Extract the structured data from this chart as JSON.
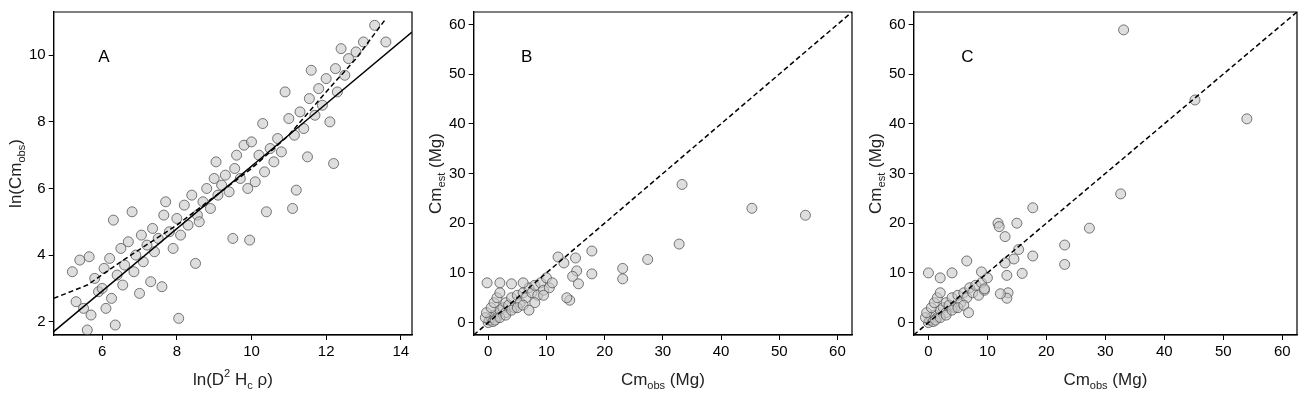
{
  "chart_data": [
    {
      "type": "scatter",
      "xlabel": "ln(D$^{2}$ H$_{c}$ ρ)",
      "ylabel": "ln(Cm$_{obs}$)",
      "annotations": [
        "A"
      ],
      "xlim": [
        4.7,
        14.3
      ],
      "ylim": [
        1.6,
        11.3
      ],
      "xticks": [
        6,
        8,
        10,
        12,
        14
      ],
      "yticks": [
        2,
        4,
        6,
        8,
        10
      ],
      "legend": false,
      "grid": false,
      "series": [
        {
          "type": "scatter",
          "marker": "circle",
          "color": "#c8c8c8",
          "x": [
            5.2,
            5.3,
            5.4,
            5.5,
            5.6,
            5.65,
            5.7,
            5.8,
            5.9,
            6.0,
            6.05,
            6.1,
            6.2,
            6.25,
            6.3,
            6.35,
            6.4,
            6.5,
            6.55,
            6.6,
            6.7,
            6.8,
            6.85,
            6.9,
            7.0,
            7.05,
            7.1,
            7.2,
            7.3,
            7.35,
            7.4,
            7.5,
            7.6,
            7.65,
            7.7,
            7.8,
            7.9,
            8.0,
            8.05,
            8.1,
            8.2,
            8.3,
            8.4,
            8.5,
            8.55,
            8.6,
            8.7,
            8.8,
            8.9,
            9.0,
            9.05,
            9.1,
            9.2,
            9.3,
            9.4,
            9.5,
            9.55,
            9.6,
            9.7,
            9.8,
            9.9,
            9.95,
            10.0,
            10.1,
            10.2,
            10.3,
            10.35,
            10.4,
            10.5,
            10.6,
            10.7,
            10.8,
            10.9,
            11.0,
            11.1,
            11.15,
            11.2,
            11.3,
            11.4,
            11.5,
            11.55,
            11.6,
            11.7,
            11.8,
            11.9,
            12.0,
            12.1,
            12.2,
            12.25,
            12.3,
            12.4,
            12.5,
            12.6,
            12.8,
            13.0,
            13.3,
            13.6
          ],
          "values": [
            3.5,
            2.6,
            3.85,
            2.4,
            1.75,
            3.95,
            2.2,
            3.3,
            2.9,
            3.0,
            3.6,
            2.4,
            3.9,
            2.7,
            5.05,
            1.9,
            3.4,
            4.2,
            3.1,
            3.7,
            4.4,
            5.3,
            3.5,
            4.0,
            2.85,
            4.6,
            3.8,
            4.3,
            3.2,
            4.8,
            4.1,
            4.5,
            3.05,
            5.2,
            5.6,
            4.7,
            4.2,
            5.1,
            2.1,
            4.6,
            5.5,
            4.9,
            5.8,
            3.75,
            5.2,
            5.0,
            5.6,
            6.0,
            5.4,
            6.3,
            6.8,
            5.8,
            6.1,
            6.4,
            5.9,
            4.5,
            6.6,
            7.0,
            6.3,
            7.3,
            6.0,
            4.45,
            7.4,
            6.2,
            7.0,
            7.95,
            6.5,
            5.3,
            7.2,
            6.8,
            7.5,
            7.1,
            8.9,
            8.1,
            5.4,
            7.6,
            5.95,
            8.3,
            7.8,
            6.95,
            8.7,
            9.55,
            8.2,
            9.0,
            8.5,
            9.3,
            8.0,
            6.75,
            9.6,
            8.9,
            10.2,
            9.4,
            9.9,
            10.1,
            10.4,
            10.9,
            10.4
          ]
        },
        {
          "type": "line",
          "marker": "none",
          "line_style": "solid",
          "color": "#000000",
          "x": [
            4.7,
            14.3
          ],
          "values": [
            1.7,
            10.7
          ]
        },
        {
          "type": "line",
          "marker": "none",
          "line_style": "dashed",
          "color": "#000000",
          "x": [
            4.7,
            5.6,
            6.5,
            8,
            10,
            11,
            12,
            12.8,
            13.6
          ],
          "values": [
            2.7,
            3.1,
            3.8,
            4.9,
            6.6,
            7.6,
            8.9,
            9.9,
            11.1
          ]
        }
      ]
    },
    {
      "type": "scatter",
      "xlabel": "Cm$_{obs}$ (Mg)",
      "ylabel": "Cm$_{est}$ (Mg)",
      "annotations": [
        "B"
      ],
      "xlim": [
        -2.5,
        62.5
      ],
      "ylim": [
        -2.5,
        62.5
      ],
      "xticks": [
        0,
        10,
        20,
        30,
        40,
        50,
        60
      ],
      "yticks": [
        0,
        10,
        20,
        30,
        40,
        50,
        60
      ],
      "legend": false,
      "grid": false,
      "series": [
        {
          "type": "scatter",
          "marker": "circle",
          "color": "#c8c8c8",
          "x": [
            0,
            0.2,
            0.5,
            1,
            1.5,
            2,
            2.5,
            3,
            3,
            3.5,
            4,
            4.5,
            5,
            5.5,
            6,
            6.5,
            7,
            7.5,
            8,
            8.5,
            9,
            9.5,
            10,
            10.5,
            11,
            -0.5,
            -0.3,
            0.5,
            1,
            1.5,
            2,
            0.8,
            1.2,
            2,
            3,
            4,
            5,
            6,
            8,
            9.5,
            -0.2,
            2,
            4,
            6,
            7,
            12,
            13,
            15,
            15.2,
            14.5,
            15.5,
            14,
            13.5,
            17.8,
            17.8,
            23.1,
            23.1,
            27.4,
            32.8,
            33.3,
            45.3,
            54.5
          ],
          "values": [
            0,
            0.5,
            1,
            1.5,
            1,
            2.5,
            3,
            2,
            4,
            3.5,
            5,
            3,
            5.5,
            4,
            6,
            5,
            7,
            6,
            7.5,
            5.5,
            8,
            6.5,
            9,
            7,
            8,
            1,
            2,
            3,
            4,
            5,
            6,
            0.2,
            0.5,
            1,
            1.5,
            2.5,
            3,
            3.5,
            4,
            5.5,
            8,
            8,
            7.8,
            8,
            2.5,
            13.2,
            12,
            13,
            10.4,
            9.3,
            7.8,
            4.5,
            5,
            14.4,
            9.8,
            10.9,
            8.8,
            12.7,
            15.8,
            27.8,
            23,
            21.6
          ]
        },
        {
          "type": "line",
          "marker": "none",
          "line_style": "dashed",
          "color": "#000000",
          "x": [
            -2.5,
            62.5
          ],
          "values": [
            -2.5,
            62.5
          ]
        }
      ]
    },
    {
      "type": "scatter",
      "xlabel": "Cm$_{obs}$ (Mg)",
      "ylabel": "Cm$_{est}$ (Mg)",
      "annotations": [
        "C"
      ],
      "xlim": [
        -2.5,
        62.5
      ],
      "ylim": [
        -2.5,
        62.5
      ],
      "xticks": [
        0,
        10,
        20,
        30,
        40,
        50,
        60
      ],
      "yticks": [
        0,
        10,
        20,
        30,
        40,
        50,
        60
      ],
      "legend": false,
      "grid": false,
      "series": [
        {
          "type": "scatter",
          "marker": "circle",
          "color": "#c8c8c8",
          "x": [
            0,
            0.2,
            0.5,
            1,
            1.5,
            2,
            2.5,
            3,
            3,
            3.5,
            4,
            4.5,
            5,
            5.5,
            6,
            6.5,
            7,
            7.5,
            8,
            8.5,
            9,
            9.5,
            10,
            -0.5,
            -0.3,
            0.5,
            1,
            1.5,
            2,
            0.8,
            1.2,
            2,
            3,
            4,
            5,
            6,
            0,
            2,
            4,
            6.5,
            9,
            9.5,
            6.8,
            11.8,
            12,
            13,
            15,
            15.3,
            14.5,
            15.9,
            13,
            13.3,
            13.5,
            13.3,
            12.2,
            17.7,
            17.7,
            23.1,
            23.1,
            27.3,
            32.6,
            33.1,
            45.2,
            54
          ],
          "values": [
            0,
            0.5,
            1,
            1.5,
            1,
            2.5,
            3,
            2,
            4,
            3.5,
            5,
            3,
            5.5,
            4,
            6,
            5,
            7,
            6,
            7.5,
            5.5,
            8,
            6.5,
            9,
            1,
            2,
            3,
            4,
            5,
            6,
            0.2,
            0.5,
            1,
            1.5,
            2.5,
            3,
            3.5,
            10,
            9,
            10,
            12.4,
            10.2,
            6.8,
            2,
            20,
            19.3,
            17.3,
            20,
            14.7,
            12.8,
            9.9,
            12,
            9.5,
            6,
            4.9,
            5.8,
            23.1,
            13.4,
            15.6,
            11.7,
            19,
            25.9,
            58.9,
            44.8,
            41
          ]
        },
        {
          "type": "line",
          "marker": "none",
          "line_style": "dashed",
          "color": "#000000",
          "x": [
            -2.5,
            62.5
          ],
          "values": [
            -2.5,
            62.5
          ]
        }
      ]
    }
  ]
}
